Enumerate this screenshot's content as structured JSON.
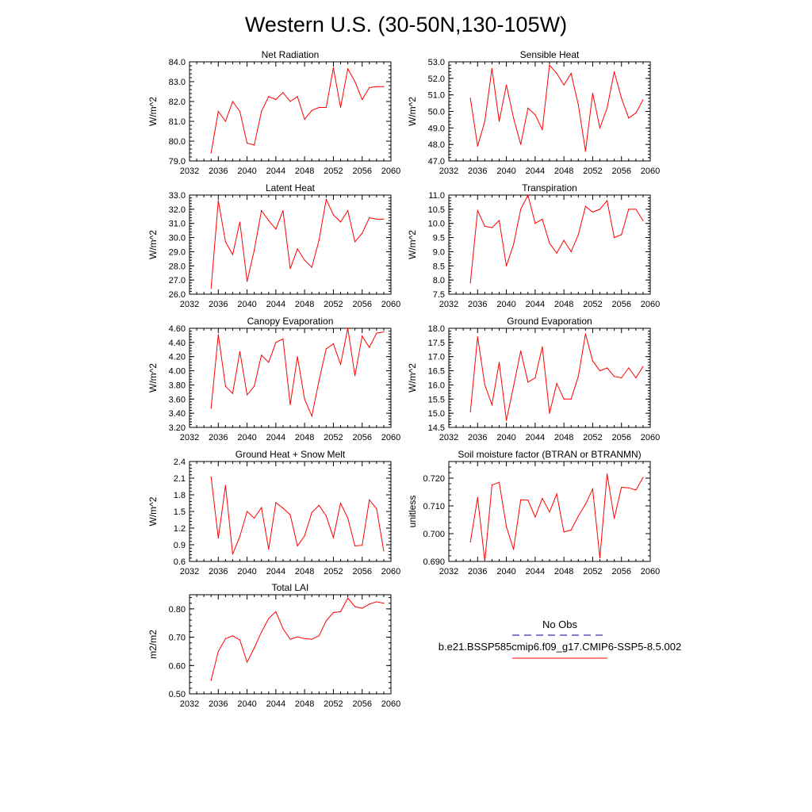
{
  "title": "Western U.S. (30-50N,130-105W)",
  "colors": {
    "series": "#ff0000",
    "obs": "#3333aa",
    "axis": "#000000"
  },
  "chart_data": [
    {
      "type": "line",
      "title": "Net Radiation",
      "ylabel": "W/m^2",
      "xlim": [
        2032,
        2060
      ],
      "ylim": [
        79.0,
        84.0
      ],
      "x_ticks": [
        2032,
        2036,
        2040,
        2044,
        2048,
        2052,
        2056,
        2060
      ],
      "y_ticks": [
        "79.0",
        "80.0",
        "81.0",
        "82.0",
        "83.0",
        "84.0"
      ],
      "y_tick_values": [
        79,
        80,
        81,
        82,
        83,
        84
      ],
      "x": [
        2035,
        2036,
        2037,
        2038,
        2039,
        2040,
        2041,
        2042,
        2043,
        2044,
        2045,
        2046,
        2047,
        2048,
        2049,
        2050,
        2051,
        2052,
        2053,
        2054,
        2055,
        2056,
        2057,
        2058,
        2059
      ],
      "values": [
        79.4,
        81.5,
        81.0,
        82.0,
        81.5,
        79.9,
        79.8,
        81.5,
        82.25,
        82.1,
        82.45,
        82.0,
        82.25,
        81.1,
        81.55,
        81.7,
        81.7,
        83.7,
        81.7,
        83.65,
        83.0,
        82.1,
        82.7,
        82.75,
        82.75
      ]
    },
    {
      "type": "line",
      "title": "Sensible Heat",
      "ylabel": "W/m^2",
      "xlim": [
        2032,
        2060
      ],
      "ylim": [
        47.0,
        53.0
      ],
      "x_ticks": [
        2032,
        2036,
        2040,
        2044,
        2048,
        2052,
        2056,
        2060
      ],
      "y_ticks": [
        "47.0",
        "48.0",
        "49.0",
        "50.0",
        "51.0",
        "52.0",
        "53.0"
      ],
      "y_tick_values": [
        47,
        48,
        49,
        50,
        51,
        52,
        53
      ],
      "x": [
        2035,
        2036,
        2037,
        2038,
        2039,
        2040,
        2041,
        2042,
        2043,
        2044,
        2045,
        2046,
        2047,
        2048,
        2049,
        2050,
        2051,
        2052,
        2053,
        2054,
        2055,
        2056,
        2057,
        2058,
        2059
      ],
      "values": [
        50.8,
        47.9,
        49.4,
        52.6,
        49.4,
        51.6,
        49.6,
        48.0,
        50.2,
        49.8,
        48.9,
        52.8,
        52.3,
        51.6,
        52.3,
        50.4,
        47.6,
        51.1,
        49.0,
        50.2,
        52.4,
        50.8,
        49.6,
        49.9,
        50.7
      ]
    },
    {
      "type": "line",
      "title": "Latent Heat",
      "ylabel": "W/m^2",
      "xlim": [
        2032,
        2060
      ],
      "ylim": [
        26.0,
        33.0
      ],
      "x_ticks": [
        2032,
        2036,
        2040,
        2044,
        2048,
        2052,
        2056,
        2060
      ],
      "y_ticks": [
        "26.0",
        "27.0",
        "28.0",
        "29.0",
        "30.0",
        "31.0",
        "32.0",
        "33.0"
      ],
      "y_tick_values": [
        26,
        27,
        28,
        29,
        30,
        31,
        32,
        33
      ],
      "x": [
        2035,
        2036,
        2037,
        2038,
        2039,
        2040,
        2041,
        2042,
        2043,
        2044,
        2045,
        2046,
        2047,
        2048,
        2049,
        2050,
        2051,
        2052,
        2053,
        2054,
        2055,
        2056,
        2057,
        2058,
        2059
      ],
      "values": [
        26.4,
        32.6,
        29.7,
        28.8,
        31.1,
        26.9,
        29.1,
        31.9,
        31.2,
        30.6,
        31.9,
        27.8,
        29.2,
        28.4,
        27.9,
        29.8,
        32.7,
        31.6,
        31.1,
        31.9,
        29.7,
        30.3,
        31.4,
        31.3,
        31.3
      ]
    },
    {
      "type": "line",
      "title": "Transpiration",
      "ylabel": "W/m^2",
      "xlim": [
        2032,
        2060
      ],
      "ylim": [
        7.5,
        11.0
      ],
      "x_ticks": [
        2032,
        2036,
        2040,
        2044,
        2048,
        2052,
        2056,
        2060
      ],
      "y_ticks": [
        "7.5",
        "8.0",
        "8.5",
        "9.0",
        "9.5",
        "10.0",
        "10.5",
        "11.0"
      ],
      "y_tick_values": [
        7.5,
        8.0,
        8.5,
        9.0,
        9.5,
        10.0,
        10.5,
        11.0
      ],
      "x": [
        2035,
        2036,
        2037,
        2038,
        2039,
        2040,
        2041,
        2042,
        2043,
        2044,
        2045,
        2046,
        2047,
        2048,
        2049,
        2050,
        2051,
        2052,
        2053,
        2054,
        2055,
        2056,
        2057,
        2058,
        2059
      ],
      "values": [
        7.9,
        10.45,
        9.9,
        9.85,
        10.1,
        8.5,
        9.25,
        10.5,
        11.0,
        10.0,
        10.15,
        9.3,
        8.95,
        9.4,
        9.0,
        9.6,
        10.6,
        10.4,
        10.5,
        10.8,
        9.5,
        9.6,
        10.5,
        10.5,
        10.1
      ]
    },
    {
      "type": "line",
      "title": "Canopy Evaporation",
      "ylabel": "W/m^2",
      "xlim": [
        2032,
        2060
      ],
      "ylim": [
        3.2,
        4.6
      ],
      "x_ticks": [
        2032,
        2036,
        2040,
        2044,
        2048,
        2052,
        2056,
        2060
      ],
      "y_ticks": [
        "3.20",
        "3.40",
        "3.60",
        "3.80",
        "4.00",
        "4.20",
        "4.40",
        "4.60"
      ],
      "y_tick_values": [
        3.2,
        3.4,
        3.6,
        3.8,
        4.0,
        4.2,
        4.4,
        4.6
      ],
      "x": [
        2035,
        2036,
        2037,
        2038,
        2039,
        2040,
        2041,
        2042,
        2043,
        2044,
        2045,
        2046,
        2047,
        2048,
        2049,
        2050,
        2051,
        2052,
        2053,
        2054,
        2055,
        2056,
        2057,
        2058,
        2059
      ],
      "values": [
        3.47,
        4.51,
        3.78,
        3.68,
        4.27,
        3.66,
        3.78,
        4.22,
        4.12,
        4.4,
        4.45,
        3.52,
        4.2,
        3.6,
        3.36,
        3.86,
        4.31,
        4.38,
        4.09,
        4.6,
        3.93,
        4.49,
        4.33,
        4.53,
        4.55
      ]
    },
    {
      "type": "line",
      "title": "Ground Evaporation",
      "ylabel": "W/m^2",
      "xlim": [
        2032,
        2060
      ],
      "ylim": [
        14.5,
        18.0
      ],
      "x_ticks": [
        2032,
        2036,
        2040,
        2044,
        2048,
        2052,
        2056,
        2060
      ],
      "y_ticks": [
        "14.5",
        "15.0",
        "15.5",
        "16.0",
        "16.5",
        "17.0",
        "17.5",
        "18.0"
      ],
      "y_tick_values": [
        14.5,
        15.0,
        15.5,
        16.0,
        16.5,
        17.0,
        17.5,
        18.0
      ],
      "x": [
        2035,
        2036,
        2037,
        2038,
        2039,
        2040,
        2041,
        2042,
        2043,
        2044,
        2045,
        2046,
        2047,
        2048,
        2049,
        2050,
        2051,
        2052,
        2053,
        2054,
        2055,
        2056,
        2057,
        2058,
        2059
      ],
      "values": [
        15.05,
        17.7,
        16.0,
        15.3,
        16.8,
        14.75,
        15.95,
        17.2,
        16.1,
        16.25,
        17.35,
        15.0,
        16.05,
        15.5,
        15.5,
        16.3,
        17.8,
        16.85,
        16.5,
        16.6,
        16.3,
        16.25,
        16.6,
        16.25,
        16.65
      ]
    },
    {
      "type": "line",
      "title": "Ground Heat + Snow Melt",
      "ylabel": "W/m^2",
      "xlim": [
        2032,
        2060
      ],
      "ylim": [
        0.6,
        2.4
      ],
      "x_ticks": [
        2032,
        2036,
        2040,
        2044,
        2048,
        2052,
        2056,
        2060
      ],
      "y_ticks": [
        "0.6",
        "0.9",
        "1.2",
        "1.5",
        "1.8",
        "2.1",
        "2.4"
      ],
      "y_tick_values": [
        0.6,
        0.9,
        1.2,
        1.5,
        1.8,
        2.1,
        2.4
      ],
      "x": [
        2035,
        2036,
        2037,
        2038,
        2039,
        2040,
        2041,
        2042,
        2043,
        2044,
        2045,
        2046,
        2047,
        2048,
        2049,
        2050,
        2051,
        2052,
        2053,
        2054,
        2055,
        2056,
        2057,
        2058,
        2059
      ],
      "values": [
        2.12,
        1.02,
        1.97,
        0.73,
        1.05,
        1.5,
        1.38,
        1.57,
        0.82,
        1.66,
        1.56,
        1.44,
        0.88,
        1.06,
        1.48,
        1.61,
        1.42,
        1.03,
        1.65,
        1.38,
        0.88,
        0.89,
        1.71,
        1.55,
        0.79
      ]
    },
    {
      "type": "line",
      "title": "Soil moisture factor (BTRAN or BTRANMN)",
      "ylabel": "unitless",
      "xlim": [
        2032,
        2060
      ],
      "ylim": [
        0.69,
        0.726
      ],
      "x_ticks": [
        2032,
        2036,
        2040,
        2044,
        2048,
        2052,
        2056,
        2060
      ],
      "y_ticks": [
        "0.690",
        "0.700",
        "0.710",
        "0.720"
      ],
      "y_tick_values": [
        0.69,
        0.7,
        0.71,
        0.72
      ],
      "x": [
        2035,
        2036,
        2037,
        2038,
        2039,
        2040,
        2041,
        2042,
        2043,
        2044,
        2045,
        2046,
        2047,
        2048,
        2049,
        2050,
        2051,
        2052,
        2053,
        2054,
        2055,
        2056,
        2057,
        2058,
        2059
      ],
      "values": [
        0.697,
        0.713,
        0.69,
        0.7175,
        0.7185,
        0.7025,
        0.6943,
        0.7122,
        0.7121,
        0.706,
        0.7127,
        0.7078,
        0.7143,
        0.7006,
        0.7013,
        0.7063,
        0.7106,
        0.7161,
        0.6913,
        0.7215,
        0.7055,
        0.7167,
        0.7165,
        0.7157,
        0.7202
      ]
    },
    {
      "type": "line",
      "title": "Total LAI",
      "ylabel": "m2/m2",
      "xlim": [
        2032,
        2060
      ],
      "ylim": [
        0.5,
        0.85
      ],
      "x_ticks": [
        2032,
        2036,
        2040,
        2044,
        2048,
        2052,
        2056,
        2060
      ],
      "y_ticks": [
        "0.50",
        "0.60",
        "0.70",
        "0.80"
      ],
      "y_tick_values": [
        0.5,
        0.6,
        0.7,
        0.8
      ],
      "x": [
        2035,
        2036,
        2037,
        2038,
        2039,
        2040,
        2041,
        2042,
        2043,
        2044,
        2045,
        2046,
        2047,
        2048,
        2049,
        2050,
        2051,
        2052,
        2053,
        2054,
        2055,
        2056,
        2057,
        2058,
        2059
      ],
      "values": [
        0.548,
        0.65,
        0.695,
        0.705,
        0.69,
        0.612,
        0.662,
        0.718,
        0.766,
        0.79,
        0.73,
        0.693,
        0.701,
        0.695,
        0.693,
        0.705,
        0.758,
        0.787,
        0.79,
        0.838,
        0.808,
        0.802,
        0.817,
        0.825,
        0.82
      ]
    }
  ],
  "legend": {
    "obs_label": "No Obs",
    "case_label": "b.e21.BSSP585cmip6.f09_g17.CMIP6-SSP5-8.5.002"
  }
}
